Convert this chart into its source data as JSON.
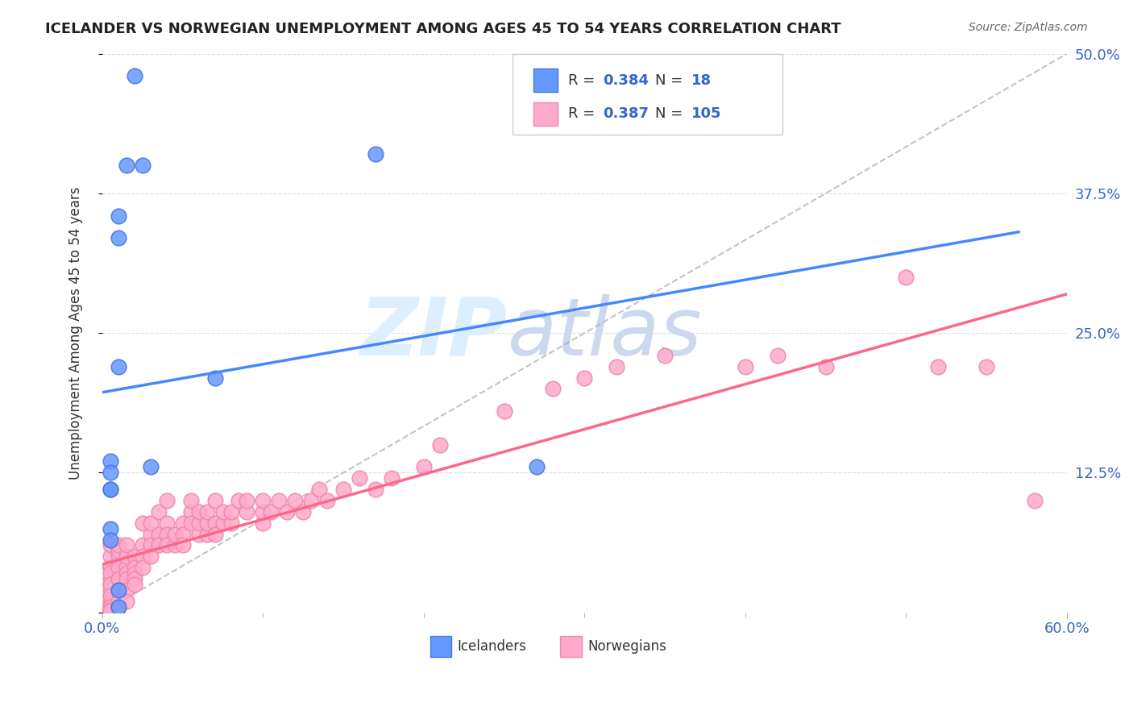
{
  "title": "ICELANDER VS NORWEGIAN UNEMPLOYMENT AMONG AGES 45 TO 54 YEARS CORRELATION CHART",
  "source": "Source: ZipAtlas.com",
  "xlabel": "",
  "ylabel": "Unemployment Among Ages 45 to 54 years",
  "xlim": [
    0.0,
    0.6
  ],
  "ylim": [
    0.0,
    0.5
  ],
  "yticks_right": [
    0.0,
    0.125,
    0.25,
    0.375,
    0.5
  ],
  "yticklabels_right": [
    "",
    "12.5%",
    "25.0%",
    "37.5%",
    "50.0%"
  ],
  "background_color": "#ffffff",
  "grid_color": "#dddddd",
  "icelander_color": "#6699ff",
  "icelander_edge": "#4477dd",
  "norwegian_color": "#ffaacc",
  "norwegian_edge": "#ee88aa",
  "icelander_R": 0.384,
  "icelander_N": 18,
  "norwegian_R": 0.387,
  "norwegian_N": 105,
  "legend_color": "#3366cc",
  "icelander_scatter_x": [
    0.02,
    0.025,
    0.015,
    0.01,
    0.01,
    0.005,
    0.005,
    0.005,
    0.005,
    0.005,
    0.005,
    0.07,
    0.17,
    0.03,
    0.27,
    0.01,
    0.01,
    0.01
  ],
  "icelander_scatter_y": [
    0.48,
    0.4,
    0.4,
    0.355,
    0.335,
    0.135,
    0.125,
    0.11,
    0.11,
    0.075,
    0.065,
    0.21,
    0.41,
    0.13,
    0.13,
    0.22,
    0.005,
    0.02
  ],
  "norwegian_scatter_x": [
    0.005,
    0.005,
    0.005,
    0.005,
    0.005,
    0.005,
    0.005,
    0.005,
    0.005,
    0.005,
    0.005,
    0.005,
    0.005,
    0.005,
    0.005,
    0.005,
    0.005,
    0.01,
    0.01,
    0.01,
    0.01,
    0.01,
    0.01,
    0.01,
    0.01,
    0.015,
    0.015,
    0.015,
    0.015,
    0.015,
    0.015,
    0.015,
    0.02,
    0.02,
    0.02,
    0.02,
    0.02,
    0.025,
    0.025,
    0.025,
    0.025,
    0.03,
    0.03,
    0.03,
    0.03,
    0.035,
    0.035,
    0.035,
    0.04,
    0.04,
    0.04,
    0.04,
    0.045,
    0.045,
    0.05,
    0.05,
    0.05,
    0.055,
    0.055,
    0.055,
    0.06,
    0.06,
    0.06,
    0.065,
    0.065,
    0.065,
    0.07,
    0.07,
    0.07,
    0.075,
    0.075,
    0.08,
    0.08,
    0.085,
    0.09,
    0.09,
    0.1,
    0.1,
    0.1,
    0.105,
    0.11,
    0.115,
    0.12,
    0.125,
    0.13,
    0.135,
    0.14,
    0.15,
    0.16,
    0.17,
    0.18,
    0.2,
    0.21,
    0.25,
    0.28,
    0.3,
    0.32,
    0.35,
    0.4,
    0.42,
    0.45,
    0.5,
    0.52,
    0.55,
    0.58
  ],
  "norwegian_scatter_y": [
    0.04,
    0.03,
    0.025,
    0.02,
    0.015,
    0.01,
    0.008,
    0.005,
    0.04,
    0.05,
    0.06,
    0.035,
    0.025,
    0.015,
    0.005,
    0.002,
    0.001,
    0.05,
    0.04,
    0.03,
    0.02,
    0.01,
    0.005,
    0.055,
    0.06,
    0.04,
    0.035,
    0.03,
    0.02,
    0.01,
    0.05,
    0.06,
    0.05,
    0.04,
    0.035,
    0.03,
    0.025,
    0.06,
    0.05,
    0.04,
    0.08,
    0.07,
    0.06,
    0.05,
    0.08,
    0.07,
    0.06,
    0.09,
    0.08,
    0.07,
    0.06,
    0.1,
    0.06,
    0.07,
    0.08,
    0.07,
    0.06,
    0.09,
    0.08,
    0.1,
    0.07,
    0.08,
    0.09,
    0.07,
    0.08,
    0.09,
    0.08,
    0.07,
    0.1,
    0.08,
    0.09,
    0.08,
    0.09,
    0.1,
    0.09,
    0.1,
    0.08,
    0.09,
    0.1,
    0.09,
    0.1,
    0.09,
    0.1,
    0.09,
    0.1,
    0.11,
    0.1,
    0.11,
    0.12,
    0.11,
    0.12,
    0.13,
    0.15,
    0.18,
    0.2,
    0.21,
    0.22,
    0.23,
    0.22,
    0.23,
    0.22,
    0.3,
    0.22,
    0.22,
    0.1
  ],
  "icelander_line_color": "#4488ff",
  "norwegian_line_color": "#ff6688",
  "reference_line_color": "#aaaaaa",
  "watermark_zip": "ZIP",
  "watermark_atlas": "atlas",
  "watermark_color_zip": "#ddeeff",
  "watermark_color_atlas": "#ccd8ee",
  "watermark_fontsize": 72
}
